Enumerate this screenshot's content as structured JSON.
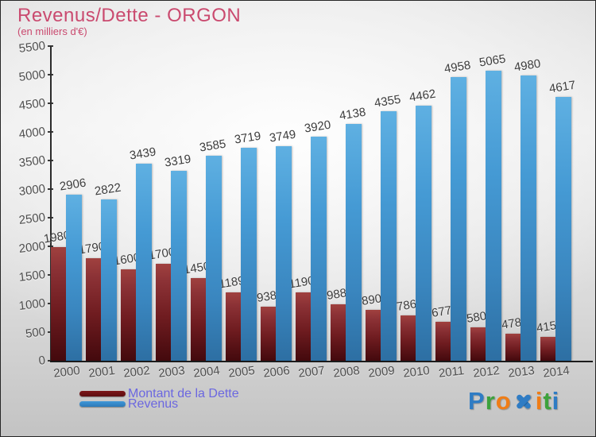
{
  "header": {
    "title": "Revenus/Dette - ORGON",
    "subtitle": "(en milliers d'€)"
  },
  "chart_data": {
    "type": "bar",
    "categories": [
      "2000",
      "2001",
      "2002",
      "2003",
      "2004",
      "2005",
      "2006",
      "2007",
      "2008",
      "2009",
      "2010",
      "2011",
      "2012",
      "2013",
      "2014"
    ],
    "series": [
      {
        "name": "Montant de la Dette",
        "color": "#7c1518",
        "values": [
          1980,
          1790,
          1600,
          1700,
          1450,
          1189,
          938,
          1190,
          988,
          890,
          786,
          677,
          580,
          478,
          415
        ]
      },
      {
        "name": "Revenus",
        "color": "#3f97d8",
        "values": [
          2906,
          2822,
          3439,
          3319,
          3585,
          3719,
          3749,
          3920,
          4138,
          4355,
          4462,
          4958,
          5065,
          4980,
          4617
        ]
      }
    ],
    "title": "Revenus/Dette - ORGON",
    "xlabel": "",
    "ylabel": "(en milliers d'€)",
    "ylim": [
      0,
      5500
    ],
    "ytick_step": 500,
    "yticks": [
      0,
      500,
      1000,
      1500,
      2000,
      2500,
      3000,
      3500,
      4000,
      4500,
      5000,
      5500
    ],
    "grid": false,
    "legend_position": "bottom-left",
    "bar_labels_shown": true
  },
  "legend": {
    "items": [
      {
        "label": "Montant de la Dette",
        "color": "#7c1518"
      },
      {
        "label": "Revenus",
        "color": "#3f97d8"
      }
    ]
  },
  "logo": {
    "name": "Proxiti",
    "letters": [
      {
        "ch": "P",
        "color": "#2f7cc4"
      },
      {
        "ch": "r",
        "color": "#3da23d"
      },
      {
        "ch": "o",
        "color": "#ef7d17"
      },
      {
        "ch": "x-cross",
        "color": "#2f7cc4"
      },
      {
        "ch": "i",
        "color": "#ef7d17"
      },
      {
        "ch": "t",
        "color": "#3da23d"
      },
      {
        "ch": "i",
        "color": "#2f7cc4"
      }
    ]
  },
  "colors": {
    "title": "#ca4a6f",
    "axis_text": "#4e4e4e",
    "bar_label_text": "#3d3d3d",
    "legend_text": "#6b67e0",
    "dette_bar_top": "#a0413f",
    "dette_bar_bottom": "#43090d",
    "revenus_bar_top": "#5fb0e2",
    "revenus_bar_bottom": "#2d6fa3"
  }
}
